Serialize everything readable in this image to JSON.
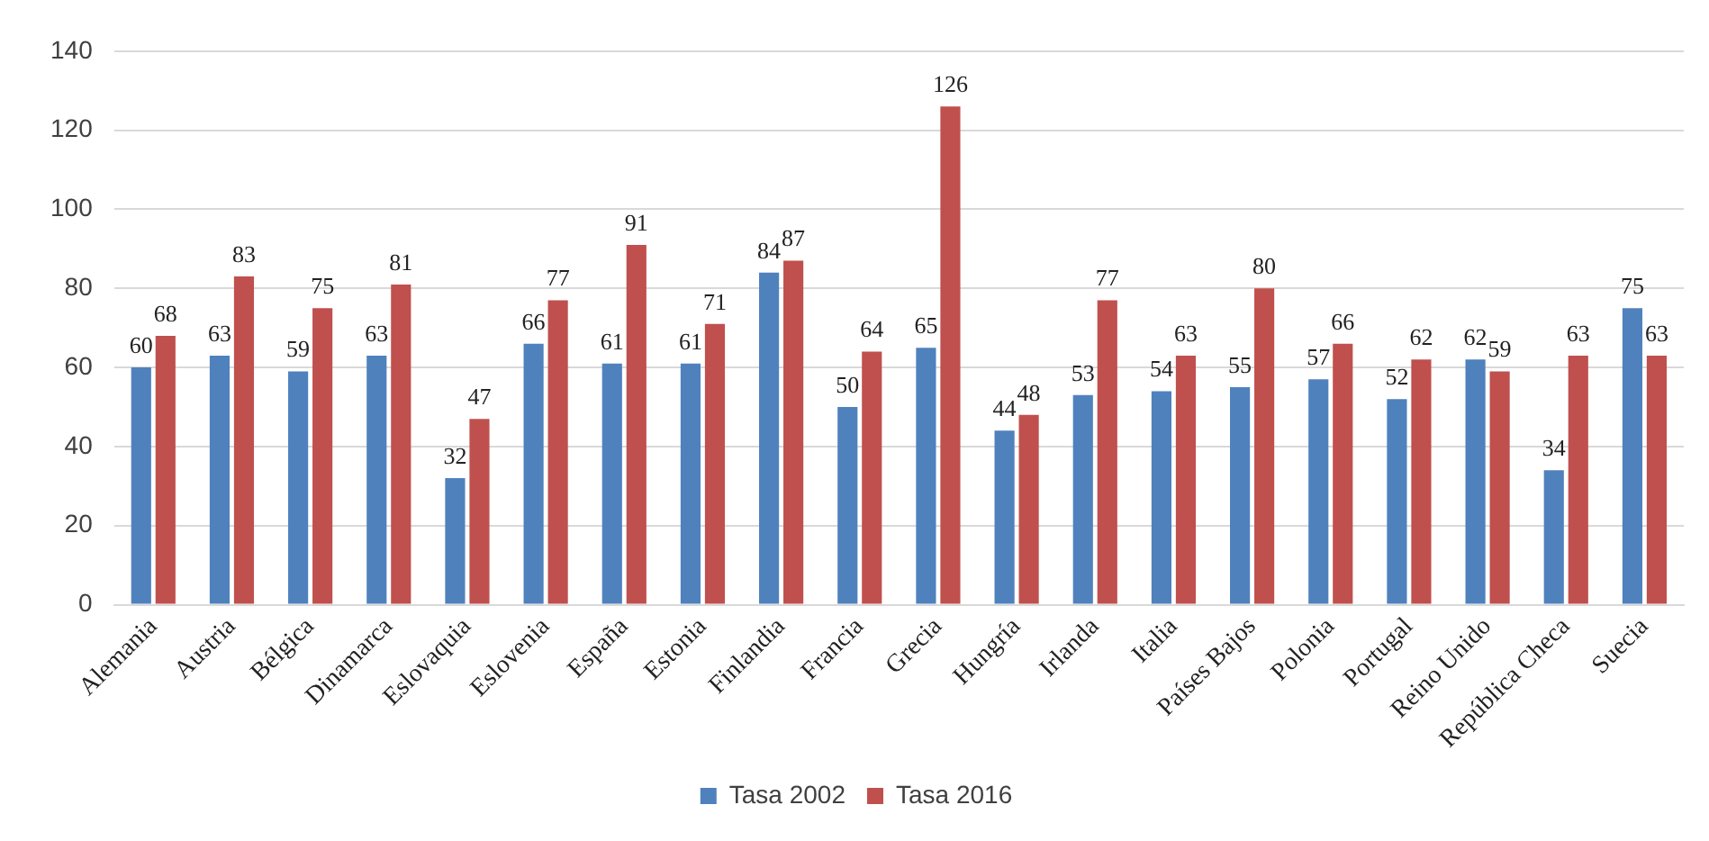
{
  "chart_data": {
    "type": "bar",
    "categories": [
      "Alemania",
      "Austria",
      "Bélgica",
      "Dinamarca",
      "Eslovaquia",
      "Eslovenia",
      "España",
      "Estonia",
      "Finlandia",
      "Francia",
      "Grecia",
      "Hungría",
      "Irlanda",
      "Italia",
      "Países Bajos",
      "Polonia",
      "Portugal",
      "Reino Unido",
      "República Checa",
      "Suecia"
    ],
    "series": [
      {
        "name": "Tasa 2002",
        "color": "#4f81bd",
        "values": [
          60,
          63,
          59,
          63,
          32,
          66,
          61,
          61,
          84,
          50,
          65,
          44,
          53,
          54,
          55,
          57,
          52,
          62,
          34,
          75
        ]
      },
      {
        "name": "Tasa 2016",
        "color": "#c0504d",
        "values": [
          68,
          83,
          75,
          81,
          47,
          77,
          91,
          71,
          87,
          64,
          126,
          48,
          77,
          63,
          80,
          66,
          62,
          59,
          63,
          63
        ]
      }
    ],
    "ylim": [
      0,
      140
    ],
    "yticks": [
      0,
      20,
      40,
      60,
      80,
      100,
      120,
      140
    ],
    "grid": "y",
    "legend": "bottom",
    "data_labels": true
  }
}
